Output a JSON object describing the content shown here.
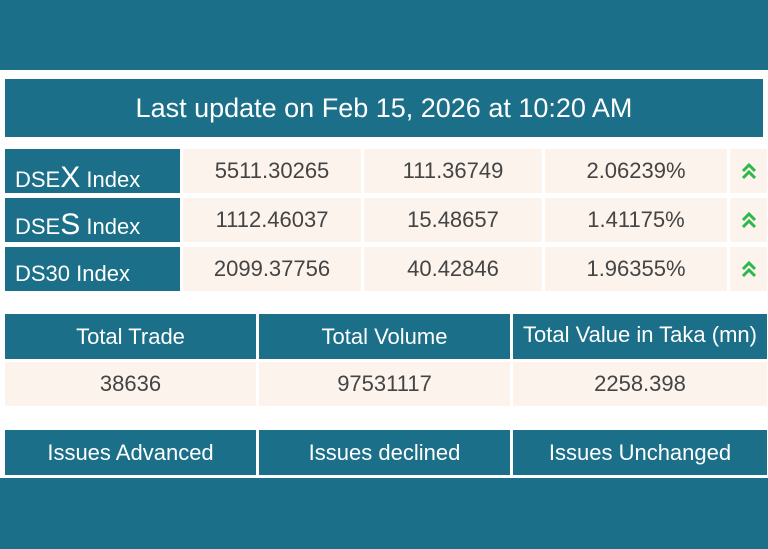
{
  "update": {
    "text": "Last update on Feb 15, 2026 at 10:20 AM"
  },
  "indices": [
    {
      "prefix": "DSE",
      "big": "X",
      "suffix": " Index",
      "value": "5511.30265",
      "change": "111.36749",
      "percent": "2.06239%",
      "arrow": "double-chevron-up-icon"
    },
    {
      "prefix": "DSE",
      "big": "S",
      "suffix": " Index",
      "value": "1112.46037",
      "change": "15.48657",
      "percent": "1.41175%",
      "arrow": "double-chevron-up-icon"
    },
    {
      "prefix": "DS30 Index",
      "big": "",
      "suffix": "",
      "value": "2099.37756",
      "change": "40.42846",
      "percent": "1.96355%",
      "arrow": "double-chevron-up-icon"
    }
  ],
  "totals": {
    "headers": [
      "Total Trade",
      "Total Volume",
      "Total Value in Taka (mn)"
    ],
    "values": [
      "38636",
      "97531117",
      "2258.398"
    ]
  },
  "issues": {
    "headers": [
      "Issues Advanced",
      "Issues declined",
      "Issues Unchanged"
    ]
  },
  "colors": {
    "teal": "#1b6f88",
    "cell": "#fcf3ec",
    "up_arrow": "#2db84b"
  }
}
